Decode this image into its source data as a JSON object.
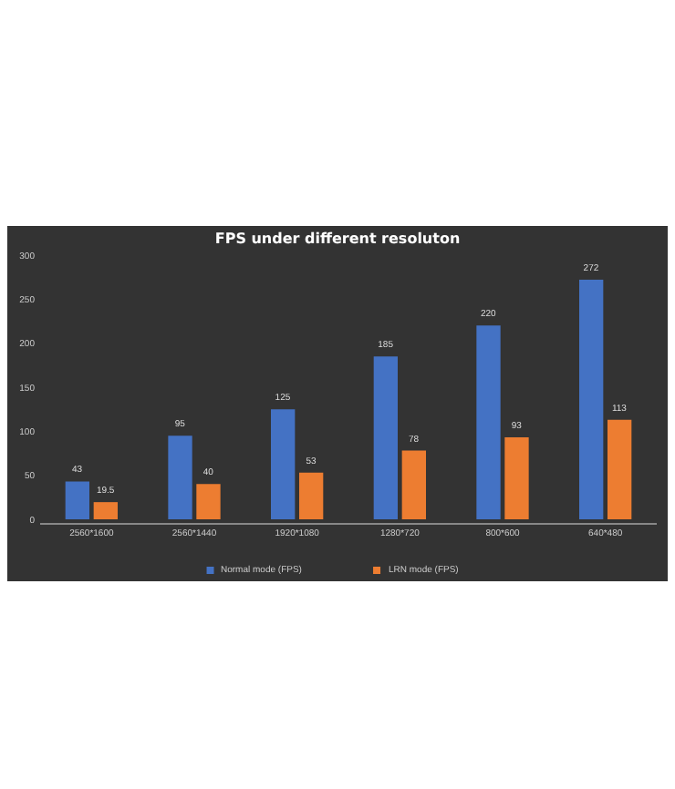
{
  "chart_data": {
    "type": "bar",
    "title": "FPS under different resoluton",
    "categories": [
      "2560*1600",
      "2560*1440",
      "1920*1080",
      "1280*720",
      "800*600",
      "640*480"
    ],
    "series": [
      {
        "name": "Normal mode (FPS)",
        "color": "#4472c4",
        "values": [
          43,
          95,
          125,
          185,
          220,
          272
        ]
      },
      {
        "name": "LRN mode (FPS)",
        "color": "#ed7d31",
        "values": [
          19.5,
          40,
          53,
          78,
          93,
          113
        ]
      }
    ],
    "ylim": [
      0,
      300
    ],
    "yticks": [
      0,
      50,
      100,
      150,
      200,
      250,
      300
    ],
    "data_labels": true,
    "grid": false,
    "legend": "bottom"
  }
}
